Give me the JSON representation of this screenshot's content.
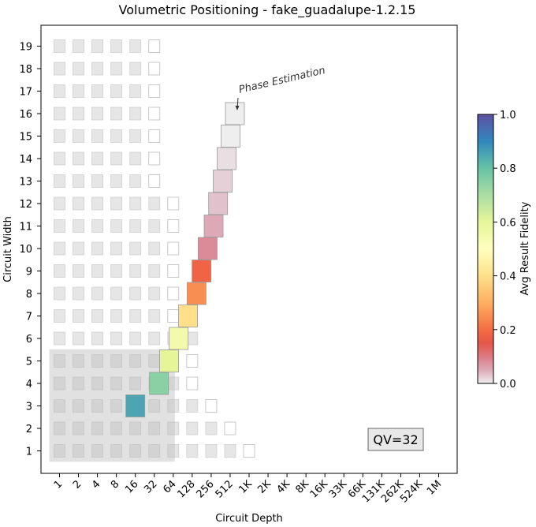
{
  "chart_data": {
    "type": "heatmap",
    "title": "Volumetric Positioning - fake_guadalupe-1.2.15",
    "xlabel": "Circuit Depth",
    "ylabel": "Circuit Width",
    "x_tick_labels": [
      "1",
      "2",
      "4",
      "8",
      "16",
      "32",
      "64",
      "128",
      "256",
      "512",
      "1K",
      "2K",
      "4K",
      "8K",
      "16K",
      "33K",
      "66K",
      "131K",
      "262K",
      "524K",
      "1M"
    ],
    "y_tick_labels": [
      "1",
      "2",
      "3",
      "4",
      "5",
      "6",
      "7",
      "8",
      "9",
      "10",
      "11",
      "12",
      "13",
      "14",
      "15",
      "16",
      "17",
      "18",
      "19"
    ],
    "colorbar": {
      "label": "Avg Result Fidelity",
      "range": [
        0,
        1
      ],
      "ticks": [
        "0.0",
        "0.2",
        "0.4",
        "0.6",
        "0.8",
        "1.0"
      ],
      "colormap": "Spectral"
    },
    "qv_label": "QV=32",
    "quantum_volume": 32,
    "annotation": "Phase Estimation",
    "qv_region": {
      "max_width": 5,
      "max_depth": "32"
    },
    "background_grid": [
      {
        "width": 1,
        "depths": [
          "1",
          "2",
          "4",
          "8",
          "16",
          "32",
          "64",
          "128",
          "256",
          "512"
        ],
        "outline_depths": [
          "1K"
        ]
      },
      {
        "width": 2,
        "depths": [
          "1",
          "2",
          "4",
          "8",
          "16",
          "32",
          "64",
          "128",
          "256"
        ],
        "outline_depths": [
          "512"
        ]
      },
      {
        "width": 3,
        "depths": [
          "1",
          "2",
          "4",
          "8",
          "16",
          "32",
          "64",
          "128"
        ],
        "outline_depths": [
          "256"
        ]
      },
      {
        "width": 4,
        "depths": [
          "1",
          "2",
          "4",
          "8",
          "16",
          "32",
          "64"
        ],
        "outline_depths": [
          "128"
        ]
      },
      {
        "width": 5,
        "depths": [
          "1",
          "2",
          "4",
          "8",
          "16",
          "32",
          "64"
        ],
        "outline_depths": [
          "128"
        ]
      },
      {
        "width": 6,
        "depths": [
          "1",
          "2",
          "4",
          "8",
          "16",
          "32",
          "64",
          "128"
        ],
        "outline_depths": []
      },
      {
        "width": 7,
        "depths": [
          "1",
          "2",
          "4",
          "8",
          "16",
          "32"
        ],
        "outline_depths": [
          "64"
        ]
      },
      {
        "width": 8,
        "depths": [
          "1",
          "2",
          "4",
          "8",
          "16",
          "32"
        ],
        "outline_depths": [
          "64"
        ]
      },
      {
        "width": 9,
        "depths": [
          "1",
          "2",
          "4",
          "8",
          "16",
          "32"
        ],
        "outline_depths": [
          "64"
        ]
      },
      {
        "width": 10,
        "depths": [
          "1",
          "2",
          "4",
          "8",
          "16",
          "32"
        ],
        "outline_depths": [
          "64"
        ]
      },
      {
        "width": 11,
        "depths": [
          "1",
          "2",
          "4",
          "8",
          "16",
          "32"
        ],
        "outline_depths": [
          "64"
        ]
      },
      {
        "width": 12,
        "depths": [
          "1",
          "2",
          "4",
          "8",
          "16",
          "32"
        ],
        "outline_depths": [
          "64"
        ]
      },
      {
        "width": 13,
        "depths": [
          "1",
          "2",
          "4",
          "8",
          "16"
        ],
        "outline_depths": [
          "32"
        ]
      },
      {
        "width": 14,
        "depths": [
          "1",
          "2",
          "4",
          "8",
          "16"
        ],
        "outline_depths": [
          "32"
        ]
      },
      {
        "width": 15,
        "depths": [
          "1",
          "2",
          "4",
          "8",
          "16"
        ],
        "outline_depths": [
          "32"
        ]
      },
      {
        "width": 16,
        "depths": [
          "1",
          "2",
          "4",
          "8",
          "16"
        ],
        "outline_depths": [
          "32"
        ]
      },
      {
        "width": 17,
        "depths": [
          "1",
          "2",
          "4",
          "8",
          "16"
        ],
        "outline_depths": [
          "32"
        ]
      },
      {
        "width": 18,
        "depths": [
          "1",
          "2",
          "4",
          "8",
          "16"
        ],
        "outline_depths": [
          "32"
        ]
      },
      {
        "width": 19,
        "depths": [
          "1",
          "2",
          "4",
          "8",
          "16"
        ],
        "outline_depths": [
          "32"
        ]
      }
    ],
    "series": [
      {
        "points": [
          {
            "width": 3,
            "depth": 16,
            "fidelity": 0.85
          },
          {
            "width": 4,
            "depth": 38,
            "fidelity": 0.75
          },
          {
            "width": 5,
            "depth": 55,
            "fidelity": 0.6
          },
          {
            "width": 6,
            "depth": 78,
            "fidelity": 0.55
          },
          {
            "width": 7,
            "depth": 110,
            "fidelity": 0.4
          },
          {
            "width": 8,
            "depth": 150,
            "fidelity": 0.25
          },
          {
            "width": 9,
            "depth": 180,
            "fidelity": 0.18
          },
          {
            "width": 10,
            "depth": 225,
            "fidelity": 0.08
          },
          {
            "width": 11,
            "depth": 280,
            "fidelity": 0.05
          },
          {
            "width": 12,
            "depth": 330,
            "fidelity": 0.03
          },
          {
            "width": 13,
            "depth": 390,
            "fidelity": 0.02
          },
          {
            "width": 14,
            "depth": 450,
            "fidelity": 0.01
          },
          {
            "width": 15,
            "depth": 520,
            "fidelity": 0.0
          },
          {
            "width": 16,
            "depth": 610,
            "fidelity": 0.0
          }
        ]
      }
    ]
  }
}
